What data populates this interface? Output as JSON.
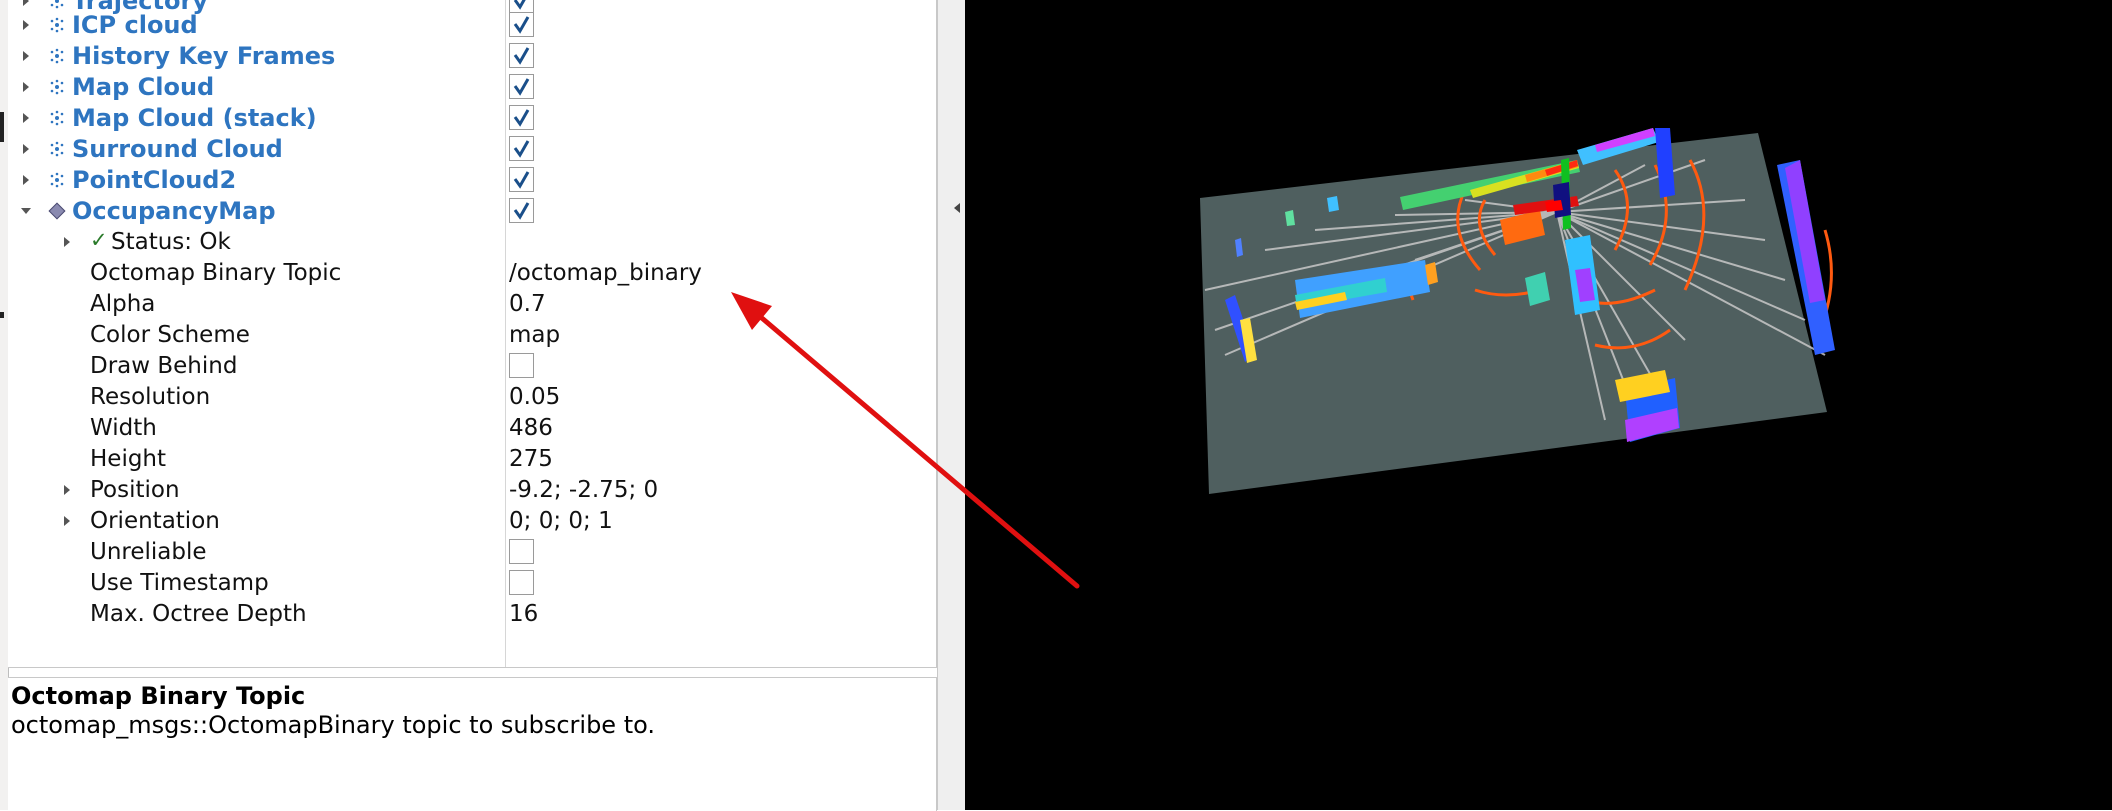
{
  "properties": {
    "top_items": [
      {
        "label": "Trajectory",
        "checked": true
      },
      {
        "label": "ICP cloud",
        "checked": true
      },
      {
        "label": "History Key Frames",
        "checked": true
      },
      {
        "label": "Map Cloud",
        "checked": true
      },
      {
        "label": "Map Cloud (stack)",
        "checked": true
      },
      {
        "label": "Surround Cloud",
        "checked": true
      },
      {
        "label": "PointCloud2",
        "checked": true
      },
      {
        "label": "OccupancyMap",
        "checked": true
      }
    ],
    "status": {
      "label": "Status: Ok",
      "icon": "checkmark-icon"
    },
    "fields": [
      {
        "label": "Octomap Binary Topic",
        "value": "/octomap_binary"
      },
      {
        "label": "Alpha",
        "value": "0.7"
      },
      {
        "label": "Color Scheme",
        "value": "map"
      },
      {
        "label": "Draw Behind",
        "checked": false
      },
      {
        "label": "Resolution",
        "value": "0.05"
      },
      {
        "label": "Width",
        "value": "486"
      },
      {
        "label": "Height",
        "value": "275"
      },
      {
        "label": "Position",
        "value": "-9.2; -2.75; 0"
      },
      {
        "label": "Orientation",
        "value": "0; 0; 0; 1"
      },
      {
        "label": "Unreliable",
        "checked": false
      },
      {
        "label": "Use Timestamp",
        "checked": false
      },
      {
        "label": "Max. Octree Depth",
        "value": "16"
      }
    ]
  },
  "description": {
    "title": "Octomap Binary Topic",
    "text": "octomap_msgs::OctomapBinary topic to subscribe to."
  },
  "colors": {
    "display_label": "#2e75c0",
    "checkmark": "#1a4f8a",
    "viewport_bg": "#000000",
    "map_plane": "#4f5f5f",
    "annotation_arrow": "#e01010"
  }
}
